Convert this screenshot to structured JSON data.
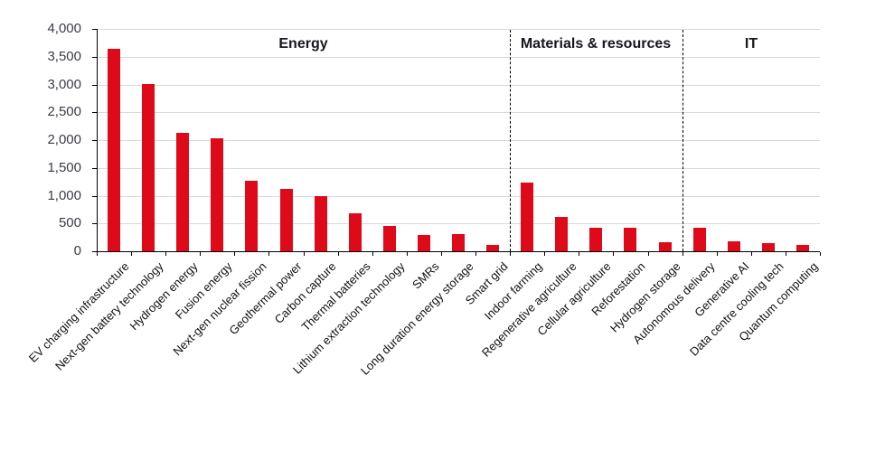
{
  "chart_data": {
    "type": "bar",
    "title": "",
    "categories": [
      "EV charging infrastructure",
      "Next-gen battery technology",
      "Hydrogen energy",
      "Fusion energy",
      "Next-gen nuclear fission",
      "Geothermal power",
      "Carbon capture",
      "Thermal batteries",
      "Lithium extraction technology",
      "SMRs",
      "Long duration energy storage",
      "Smart grid",
      "Indoor farming",
      "Regenerative agriculture",
      "Cellular agriculture",
      "Reforestation",
      "Hydrogen storage",
      "Autonomous delivery",
      "Generative AI",
      "Data centre cooling tech",
      "Quantum computing"
    ],
    "values": [
      3650,
      3000,
      2130,
      2040,
      1270,
      1120,
      990,
      690,
      460,
      300,
      310,
      110,
      1240,
      610,
      420,
      430,
      170,
      430,
      180,
      150,
      110
    ],
    "groups": [
      {
        "label": "Energy",
        "count": 12
      },
      {
        "label": "Materials & resources",
        "count": 5
      },
      {
        "label": "IT",
        "count": 4
      }
    ],
    "y_axis": {
      "min": 0,
      "max": 4000,
      "step": 500,
      "tick_labels": [
        "0",
        "500",
        "1,000",
        "1,500",
        "2,000",
        "2,500",
        "3,000",
        "3,500",
        "4,000"
      ]
    },
    "x_axis_label": "",
    "y_axis_label": "",
    "legend_position": "none",
    "grid": "horizontal",
    "bar_color": "#de0a1a",
    "gridline_color": "#d9d9d9",
    "axis_color": "#000000",
    "separator_line_style": "dashed"
  }
}
